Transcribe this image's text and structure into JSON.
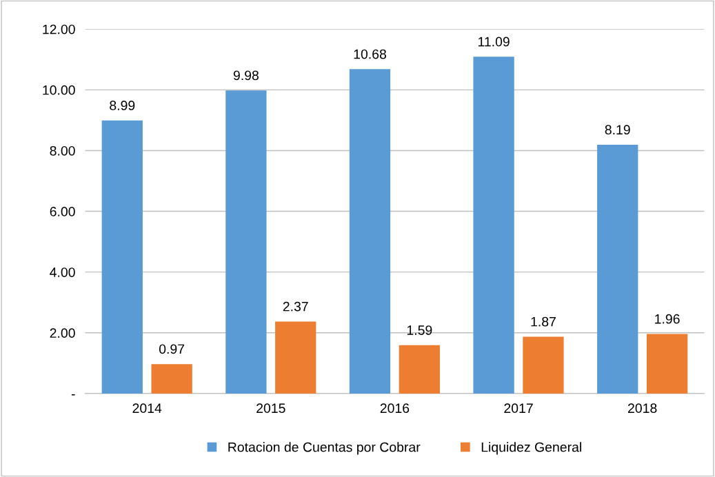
{
  "chart_data": {
    "type": "bar",
    "categories": [
      "2014",
      "2015",
      "2016",
      "2017",
      "2018"
    ],
    "series": [
      {
        "name": "Rotacion de Cuentas por Cobrar",
        "color": "#5b9bd5",
        "values": [
          8.99,
          9.98,
          10.68,
          11.09,
          8.19
        ]
      },
      {
        "name": "Liquidez General",
        "color": "#ed7d31",
        "values": [
          0.97,
          2.37,
          1.59,
          1.87,
          1.96
        ]
      }
    ],
    "ylim": [
      0,
      12
    ],
    "yticks": [
      {
        "value": 0,
        "label": "-"
      },
      {
        "value": 2,
        "label": "2.00"
      },
      {
        "value": 4,
        "label": "4.00"
      },
      {
        "value": 6,
        "label": "6.00"
      },
      {
        "value": 8,
        "label": "8.00"
      },
      {
        "value": 10,
        "label": "10.00"
      },
      {
        "value": 12,
        "label": "12.00"
      }
    ],
    "grid": "y",
    "legend": "bottom",
    "data_labels": true
  }
}
